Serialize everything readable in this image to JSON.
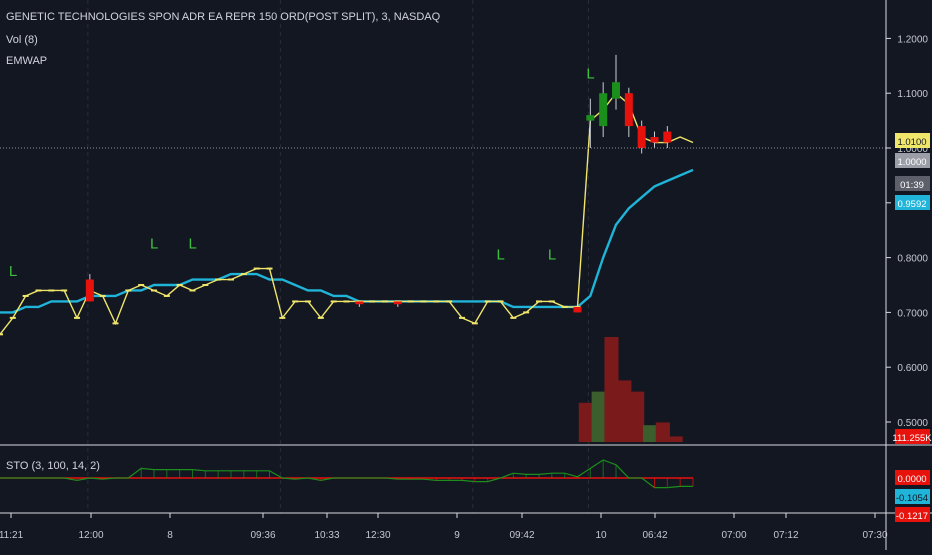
{
  "header": {
    "symbol_title": "GENETIC TECHNOLOGIES SPON ADR EA REPR 150 ORD(POST SPLIT), 3, NASDAQ",
    "indicator_vol": "Vol (8)",
    "indicator_emwap": "EMWAP"
  },
  "colors": {
    "background": "#131722",
    "grid": "#1e2230",
    "up": "#1b8f1b",
    "down": "#e8120c",
    "price_line": "#f0e66a",
    "emwap": "#1fb4d8",
    "vol_up": "#3b5e2c",
    "vol_down": "#7a1a1a",
    "axis_text": "#c5c8d0",
    "sto_green": "#1b8f1b",
    "sto_red": "#e8120c"
  },
  "price_axis": {
    "ticks": [
      "1.2000",
      "1.1000",
      "1.0000",
      "0.9000",
      "0.8000",
      "0.7000",
      "0.6000",
      "0.5000"
    ],
    "badges": [
      {
        "name": "last-price-badge",
        "text": "1.0100",
        "bg": "#f0e66a",
        "fg": "#131722"
      },
      {
        "name": "close-price-badge",
        "text": "1.0000",
        "bg": "#9b9ea6",
        "fg": "#ffffff"
      },
      {
        "name": "countdown-badge",
        "text": "01:39",
        "bg": "#5d606b",
        "fg": "#ffffff"
      },
      {
        "name": "emwap-badge",
        "text": "0.9592",
        "bg": "#1fb4d8",
        "fg": "#ffffff"
      },
      {
        "name": "volume-badge",
        "text": "111.255K",
        "bg": "#e8120c",
        "fg": "#ffffff"
      }
    ]
  },
  "sto_panel": {
    "title": "STO (3, 100, 14, 2)",
    "badges": [
      {
        "name": "sto-k-badge",
        "text": "0.0000",
        "bg": "#e8120c",
        "fg": "#ffffff"
      },
      {
        "name": "sto-d-badge",
        "text": "-0.1054",
        "bg": "#1fb4d8",
        "fg": "#131722"
      },
      {
        "name": "sto-extra-badge",
        "text": "-0.1217",
        "bg": "#e8120c",
        "fg": "#ffffff"
      }
    ]
  },
  "time_axis": {
    "labels": [
      "11:21",
      "12:00",
      "8",
      "09:36",
      "10:33",
      "12:30",
      "9",
      "09:42",
      "10",
      "06:42",
      "07:00",
      "07:12",
      "07:30"
    ]
  },
  "chart_data": {
    "type": "line",
    "ylim": [
      0.47,
      1.25
    ],
    "price_line": [
      0.66,
      0.69,
      0.73,
      0.74,
      0.74,
      0.74,
      0.69,
      0.74,
      0.73,
      0.68,
      0.74,
      0.75,
      0.74,
      0.73,
      0.75,
      0.74,
      0.75,
      0.76,
      0.76,
      0.77,
      0.78,
      0.78,
      0.69,
      0.72,
      0.72,
      0.69,
      0.72,
      0.72,
      0.72,
      0.72,
      0.72,
      0.72,
      0.72,
      0.72,
      0.72,
      0.72,
      0.69,
      0.68,
      0.72,
      0.72,
      0.69,
      0.7,
      0.72,
      0.72,
      0.71,
      0.71,
      1.05,
      1.07,
      1.1,
      1.08,
      1.02,
      1.01,
      1.01,
      1.02,
      1.01
    ],
    "emwap": [
      0.7,
      0.7,
      0.71,
      0.71,
      0.72,
      0.72,
      0.72,
      0.73,
      0.73,
      0.73,
      0.74,
      0.74,
      0.75,
      0.75,
      0.75,
      0.76,
      0.76,
      0.76,
      0.77,
      0.77,
      0.77,
      0.76,
      0.76,
      0.75,
      0.74,
      0.74,
      0.73,
      0.73,
      0.72,
      0.72,
      0.72,
      0.72,
      0.72,
      0.72,
      0.72,
      0.72,
      0.72,
      0.72,
      0.72,
      0.72,
      0.71,
      0.71,
      0.71,
      0.71,
      0.71,
      0.71,
      0.73,
      0.8,
      0.86,
      0.89,
      0.91,
      0.93,
      0.94,
      0.95,
      0.96
    ],
    "candles": [
      {
        "i": 7,
        "o": 0.76,
        "h": 0.77,
        "l": 0.72,
        "c": 0.72
      },
      {
        "i": 28,
        "o": 0.72,
        "h": 0.72,
        "l": 0.71,
        "c": 0.715
      },
      {
        "i": 31,
        "o": 0.72,
        "h": 0.72,
        "l": 0.71,
        "c": 0.715
      },
      {
        "i": 45,
        "o": 0.71,
        "h": 0.71,
        "l": 0.7,
        "c": 0.7
      },
      {
        "i": 46,
        "o": 1.05,
        "h": 1.09,
        "l": 1.0,
        "c": 1.06
      },
      {
        "i": 47,
        "o": 1.04,
        "h": 1.12,
        "l": 1.02,
        "c": 1.1
      },
      {
        "i": 48,
        "o": 1.09,
        "h": 1.17,
        "l": 1.07,
        "c": 1.12
      },
      {
        "i": 49,
        "o": 1.1,
        "h": 1.11,
        "l": 1.02,
        "c": 1.04
      },
      {
        "i": 50,
        "o": 1.04,
        "h": 1.05,
        "l": 0.99,
        "c": 1.0
      },
      {
        "i": 51,
        "o": 1.02,
        "h": 1.03,
        "l": 1.0,
        "c": 1.01
      },
      {
        "i": 52,
        "o": 1.03,
        "h": 1.04,
        "l": 1.0,
        "c": 1.01
      }
    ],
    "volume": [
      {
        "i": 46,
        "v": 0.28,
        "dir": "down"
      },
      {
        "i": 47,
        "v": 0.36,
        "dir": "up"
      },
      {
        "i": 48,
        "v": 0.75,
        "dir": "down"
      },
      {
        "i": 49,
        "v": 0.44,
        "dir": "down"
      },
      {
        "i": 50,
        "v": 0.36,
        "dir": "down"
      },
      {
        "i": 51,
        "v": 0.12,
        "dir": "up"
      },
      {
        "i": 52,
        "v": 0.14,
        "dir": "down"
      },
      {
        "i": 53,
        "v": 0.04,
        "dir": "down"
      }
    ],
    "sto": [
      0.0,
      0.0,
      0.0,
      0.0,
      0.0,
      0.0,
      -0.2,
      0.0,
      -0.1,
      0.0,
      0.0,
      0.8,
      0.7,
      0.7,
      0.7,
      0.7,
      0.6,
      0.6,
      0.6,
      0.6,
      0.6,
      0.6,
      0.0,
      -0.1,
      0.0,
      -0.2,
      0.0,
      0.0,
      0.0,
      0.0,
      0.0,
      -0.1,
      -0.1,
      -0.1,
      -0.2,
      -0.2,
      -0.2,
      -0.3,
      -0.3,
      0.0,
      0.4,
      0.3,
      0.3,
      0.4,
      0.4,
      0.1,
      0.8,
      1.5,
      1.1,
      0.0,
      0.0,
      -0.8,
      -0.8,
      -0.7,
      -0.7
    ],
    "signals": [
      1,
      12,
      15,
      39,
      43,
      46
    ],
    "session_markers": [
      7,
      22,
      37,
      46
    ]
  }
}
